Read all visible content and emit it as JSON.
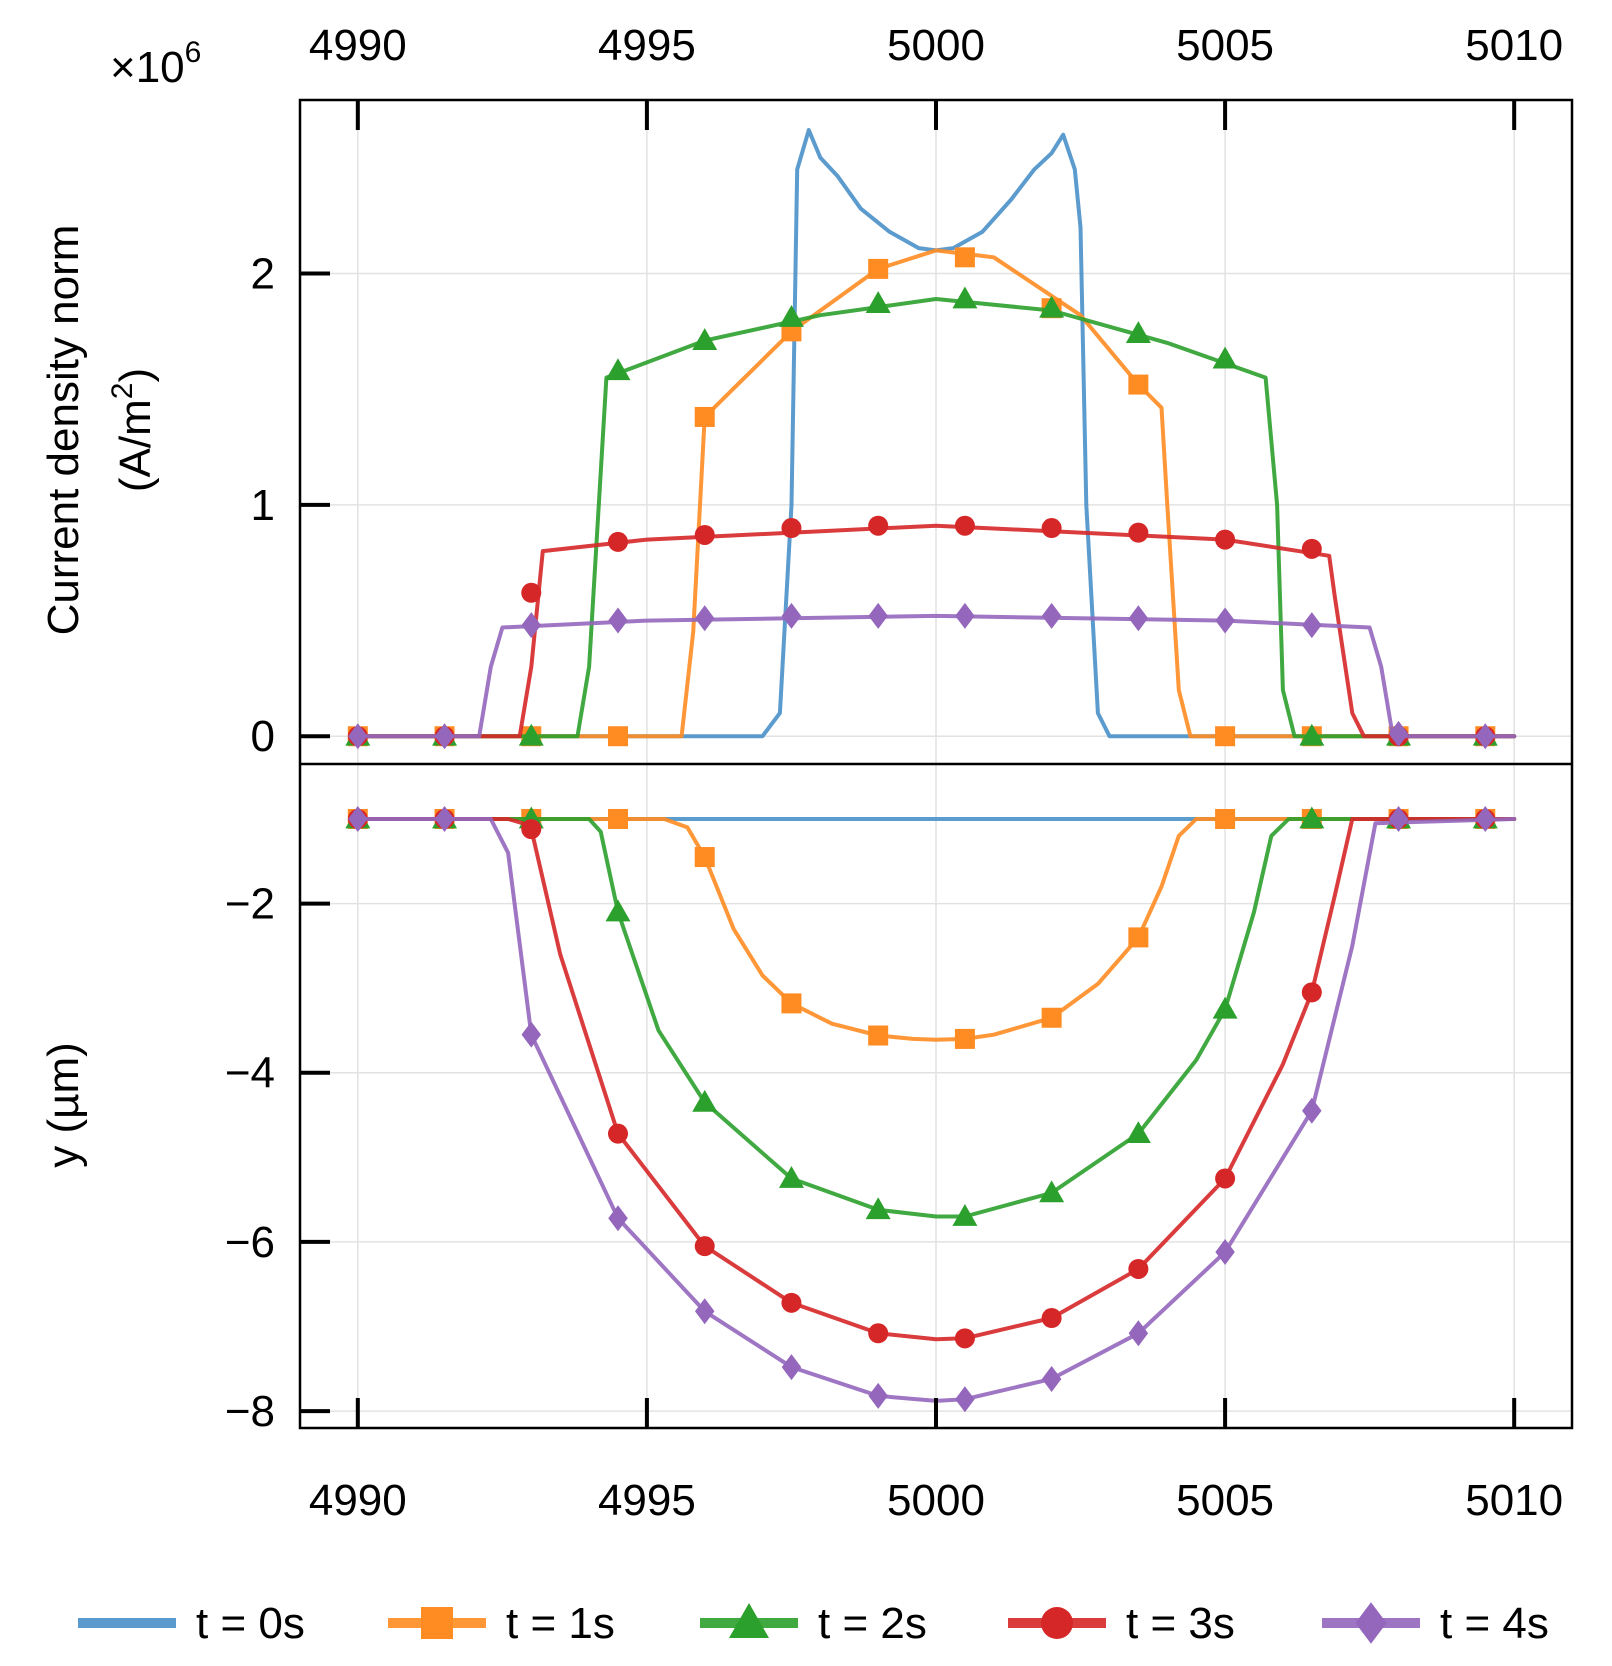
{
  "chart_data": {
    "type": "line",
    "x_ticks": [
      4990,
      4995,
      5000,
      5005,
      5010
    ],
    "x_tick_labels": [
      "4990",
      "4995",
      "5000",
      "5005",
      "5010"
    ],
    "xlim": [
      4989,
      5011
    ],
    "top_panel": {
      "ylabel_line1": "Current density norm",
      "ylabel_line2": "(A/m",
      "ylabel_sup": "2",
      "ylabel_close": ")",
      "ylim": [
        -0.12,
        2.75
      ],
      "y_ticks": [
        0,
        1,
        2
      ],
      "y_tick_labels": [
        "0",
        "1",
        "2"
      ],
      "scale_prefix": "×10",
      "scale_exp": "6",
      "series": [
        {
          "name": "t = 0s",
          "color": "#4a90c8",
          "marker": "none",
          "x": [
            4990,
            4997.0,
            4997.3,
            4997.5,
            4997.6,
            4997.8,
            4998.0,
            4998.3,
            4998.7,
            4999.2,
            4999.7,
            5000.0,
            5000.3,
            5000.8,
            5001.3,
            5001.7,
            5002.0,
            5002.2,
            5002.4,
            5002.5,
            5002.6,
            5002.8,
            5003.0,
            5010
          ],
          "y": [
            0,
            0,
            0.1,
            1.0,
            2.45,
            2.62,
            2.5,
            2.42,
            2.28,
            2.18,
            2.11,
            2.1,
            2.11,
            2.18,
            2.32,
            2.45,
            2.52,
            2.6,
            2.45,
            2.2,
            1.0,
            0.1,
            0,
            0
          ]
        },
        {
          "name": "t = 1s",
          "color": "#ff8c22",
          "marker": "square",
          "x": [
            4990,
            4995.6,
            4995.8,
            4996.0,
            4997.5,
            4999.0,
            5000.0,
            5001.0,
            5002.5,
            5003.5,
            5003.9,
            5004.0,
            5004.2,
            5004.4,
            5010
          ],
          "y": [
            0,
            0,
            0.45,
            1.38,
            1.75,
            2.02,
            2.1,
            2.07,
            1.82,
            1.52,
            1.42,
            1.0,
            0.2,
            0,
            0
          ],
          "mx": [
            4990,
            4991.5,
            4993.0,
            4994.5,
            4996.0,
            4997.5,
            4999.0,
            5000.5,
            5002.0,
            5003.5,
            5005.0,
            5006.5,
            5008.0,
            5009.5
          ],
          "my": [
            0,
            0,
            0,
            0,
            1.38,
            1.75,
            2.02,
            2.07,
            1.85,
            1.52,
            0,
            0,
            0,
            0
          ]
        },
        {
          "name": "t = 2s",
          "color": "#2ca02c",
          "marker": "triangle",
          "x": [
            4990,
            4993.8,
            4994.0,
            4994.3,
            4996.0,
            4998.0,
            5000.0,
            5002.0,
            5004.0,
            5005.7,
            5005.9,
            5006.0,
            5006.2,
            5010
          ],
          "y": [
            0,
            0,
            0.3,
            1.55,
            1.71,
            1.82,
            1.89,
            1.84,
            1.7,
            1.55,
            1.0,
            0.2,
            0,
            0
          ],
          "mx": [
            4990,
            4991.5,
            4993.0,
            4994.5,
            4996.0,
            4997.5,
            4999.0,
            5000.5,
            5002.0,
            5003.5,
            5005.0,
            5006.5,
            5008.0,
            5009.5
          ],
          "my": [
            0,
            0,
            0,
            1.58,
            1.71,
            1.81,
            1.87,
            1.89,
            1.85,
            1.74,
            1.63,
            0,
            0,
            0
          ]
        },
        {
          "name": "t = 3s",
          "color": "#d62728",
          "marker": "circle",
          "x": [
            4990,
            4992.8,
            4993.0,
            4993.2,
            4995.0,
            5000.0,
            5005.0,
            5006.8,
            5006.9,
            5007.2,
            5007.4,
            5010
          ],
          "y": [
            0,
            0,
            0.3,
            0.8,
            0.85,
            0.91,
            0.85,
            0.78,
            0.6,
            0.1,
            0,
            0
          ],
          "mx": [
            4990,
            4991.5,
            4993.0,
            4994.5,
            4996.0,
            4997.5,
            4999.0,
            5000.5,
            5002.0,
            5003.5,
            5005.0,
            5006.5,
            5008.0,
            5009.5
          ],
          "my": [
            0,
            0,
            0.62,
            0.84,
            0.87,
            0.9,
            0.91,
            0.91,
            0.9,
            0.88,
            0.85,
            0.81,
            0,
            0
          ]
        },
        {
          "name": "t = 4s",
          "color": "#9467bd",
          "marker": "diamond",
          "x": [
            4990,
            4992.1,
            4992.3,
            4992.5,
            4995.0,
            5000.0,
            5005.0,
            5007.5,
            5007.7,
            5007.9,
            5010
          ],
          "y": [
            0,
            0,
            0.3,
            0.47,
            0.5,
            0.52,
            0.5,
            0.47,
            0.3,
            0,
            0
          ],
          "mx": [
            4990,
            4991.5,
            4993.0,
            4994.5,
            4996.0,
            4997.5,
            4999.0,
            5000.5,
            5002.0,
            5003.5,
            5005.0,
            5006.5,
            5008.0,
            5009.5
          ],
          "my": [
            0,
            0,
            0.48,
            0.5,
            0.51,
            0.52,
            0.52,
            0.52,
            0.52,
            0.51,
            0.5,
            0.48,
            0.01,
            0
          ]
        }
      ]
    },
    "bottom_panel": {
      "ylabel": "y (µm)",
      "ylim": [
        -8.2,
        -0.35
      ],
      "y_ticks": [
        -2,
        -4,
        -6,
        -8
      ],
      "y_tick_labels": [
        "−2",
        "−4",
        "−6",
        "−8"
      ],
      "series": [
        {
          "name": "t = 0s",
          "color": "#4a90c8",
          "marker": "none",
          "x": [
            4990,
            5010
          ],
          "y": [
            -1.0,
            -1.0
          ]
        },
        {
          "name": "t = 1s",
          "color": "#ff8c22",
          "marker": "square",
          "x": [
            4990,
            4995.3,
            4995.7,
            4996.0,
            4996.5,
            4997.0,
            4997.5,
            4998.2,
            4999.0,
            4999.6,
            5000.0,
            5000.5,
            5001.0,
            5002.0,
            5002.8,
            5003.5,
            5003.9,
            5004.2,
            5004.5,
            5010
          ],
          "y": [
            -1.0,
            -1.0,
            -1.1,
            -1.45,
            -2.3,
            -2.85,
            -3.18,
            -3.42,
            -3.56,
            -3.6,
            -3.61,
            -3.6,
            -3.55,
            -3.35,
            -2.95,
            -2.4,
            -1.8,
            -1.2,
            -1.0,
            -1.0
          ],
          "mx": [
            4990,
            4991.5,
            4993.0,
            4994.5,
            4996.0,
            4997.5,
            4999.0,
            5000.5,
            5002.0,
            5003.5,
            5005.0,
            5006.5,
            5008.0,
            5009.5
          ],
          "my": [
            -1.0,
            -1.0,
            -1.0,
            -1.0,
            -1.45,
            -3.18,
            -3.56,
            -3.6,
            -3.35,
            -2.4,
            -1.0,
            -1.0,
            -1.0,
            -1.0
          ]
        },
        {
          "name": "t = 2s",
          "color": "#2ca02c",
          "marker": "triangle",
          "x": [
            4990,
            4994.0,
            4994.2,
            4994.5,
            4995.2,
            4996.0,
            4997.5,
            4999.0,
            5000.0,
            5000.5,
            5002.0,
            5003.5,
            5004.5,
            5005.0,
            5005.5,
            5005.8,
            5006.1,
            5010
          ],
          "y": [
            -1.0,
            -1.0,
            -1.15,
            -2.1,
            -3.5,
            -4.35,
            -5.25,
            -5.62,
            -5.7,
            -5.7,
            -5.42,
            -4.72,
            -3.85,
            -3.25,
            -2.1,
            -1.2,
            -1.0,
            -1.0
          ],
          "mx": [
            4990,
            4991.5,
            4993.0,
            4994.5,
            4996.0,
            4997.5,
            4999.0,
            5000.5,
            5002.0,
            5003.5,
            5005.0,
            5006.5,
            5008.0,
            5009.5
          ],
          "my": [
            -1.0,
            -1.0,
            -1.0,
            -2.1,
            -4.35,
            -5.25,
            -5.62,
            -5.7,
            -5.42,
            -4.72,
            -3.25,
            -1.0,
            -1.0,
            -1.0
          ]
        },
        {
          "name": "t = 3s",
          "color": "#d62728",
          "marker": "circle",
          "x": [
            4990,
            4992.6,
            4992.85,
            4993.0,
            4993.5,
            4994.5,
            4996.0,
            4997.5,
            4999.0,
            5000.0,
            5000.5,
            5002.0,
            5003.5,
            5005.0,
            5006.0,
            5006.5,
            5006.9,
            5007.2,
            5010
          ],
          "y": [
            -1.0,
            -1.0,
            -1.05,
            -1.12,
            -2.6,
            -4.72,
            -6.05,
            -6.72,
            -7.08,
            -7.15,
            -7.14,
            -6.9,
            -6.32,
            -5.25,
            -3.9,
            -3.05,
            -1.9,
            -1.0,
            -1.0
          ],
          "mx": [
            4990,
            4991.5,
            4993.0,
            4994.5,
            4996.0,
            4997.5,
            4999.0,
            5000.5,
            5002.0,
            5003.5,
            5005.0,
            5006.5,
            5008.0,
            5009.5
          ],
          "my": [
            -1.0,
            -1.0,
            -1.12,
            -4.72,
            -6.05,
            -6.72,
            -7.08,
            -7.14,
            -6.9,
            -6.32,
            -5.25,
            -3.05,
            -1.0,
            -1.0
          ]
        },
        {
          "name": "t = 4s",
          "color": "#9467bd",
          "marker": "diamond",
          "x": [
            4990,
            4992.3,
            4992.6,
            4993.0,
            4994.5,
            4996.0,
            4997.5,
            4999.0,
            5000.0,
            5000.5,
            5002.0,
            5003.5,
            5005.0,
            5006.5,
            5007.2,
            5007.6,
            5010
          ],
          "y": [
            -1.0,
            -1.0,
            -1.4,
            -3.55,
            -5.72,
            -6.82,
            -7.48,
            -7.82,
            -7.88,
            -7.86,
            -7.62,
            -7.08,
            -6.12,
            -4.45,
            -2.5,
            -1.05,
            -1.0
          ],
          "mx": [
            4990,
            4991.5,
            4993.0,
            4994.5,
            4996.0,
            4997.5,
            4999.0,
            5000.5,
            5002.0,
            5003.5,
            5005.0,
            5006.5,
            5008.0,
            5009.5
          ],
          "my": [
            -1.0,
            -1.0,
            -3.55,
            -5.72,
            -6.82,
            -7.48,
            -7.82,
            -7.86,
            -7.62,
            -7.08,
            -6.12,
            -4.45,
            -1.0,
            -1.0
          ]
        }
      ]
    },
    "legend": [
      {
        "label": "t = 0s",
        "color": "#4a90c8",
        "marker": "none"
      },
      {
        "label": "t = 1s",
        "color": "#ff8c22",
        "marker": "square"
      },
      {
        "label": "t = 2s",
        "color": "#2ca02c",
        "marker": "triangle"
      },
      {
        "label": "t = 3s",
        "color": "#d62728",
        "marker": "circle"
      },
      {
        "label": "t = 4s",
        "color": "#9467bd",
        "marker": "diamond"
      }
    ],
    "legend_position": "bottom"
  }
}
